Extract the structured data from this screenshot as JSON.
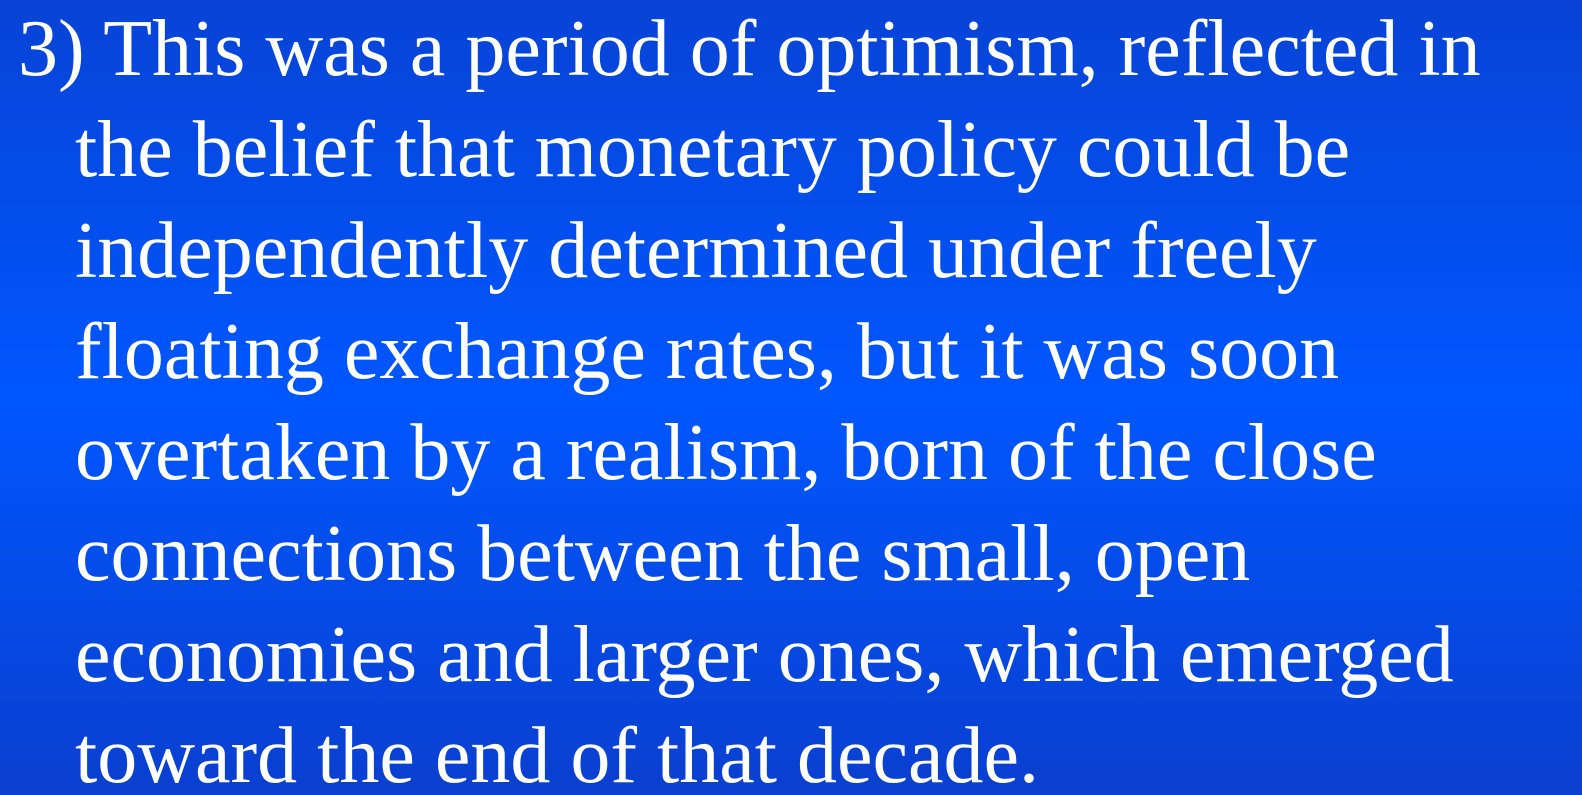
{
  "slide": {
    "lines": [
      "3) This was a period of optimism, reflected in",
      "the belief that monetary policy could be",
      "independently determined under freely",
      "floating exchange rates, but it was soon",
      "overtaken by a realism, born of the close",
      "connections between the small, open",
      "economies and larger ones, which emerged",
      "toward the end of that decade."
    ]
  }
}
